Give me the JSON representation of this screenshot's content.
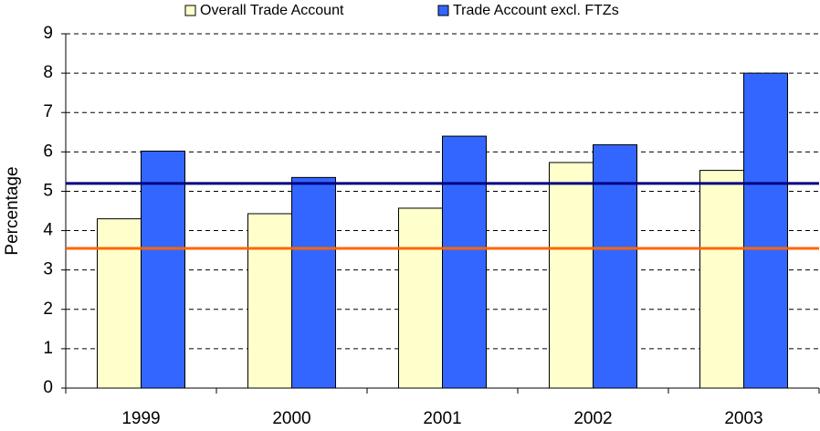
{
  "chart_data": {
    "type": "bar",
    "y_label": "Percentage",
    "categories": [
      "1999",
      "2000",
      "2001",
      "2002",
      "2003"
    ],
    "series": [
      {
        "name": "Overall Trade Account",
        "color": "#ffffcc",
        "values": [
          4.3,
          4.43,
          4.57,
          5.73,
          5.53
        ]
      },
      {
        "name": "Trade Account excl. FTZs",
        "color": "#3366ff",
        "values": [
          6.02,
          5.35,
          6.4,
          6.18,
          8.0
        ]
      }
    ],
    "reference_lines": [
      {
        "value": 5.2,
        "color": "#000080"
      },
      {
        "value": 3.55,
        "color": "#ff6600"
      }
    ],
    "ylim": [
      0,
      9
    ],
    "yticks": [
      0,
      1,
      2,
      3,
      4,
      5,
      6,
      7,
      8,
      9
    ],
    "grid": true
  }
}
